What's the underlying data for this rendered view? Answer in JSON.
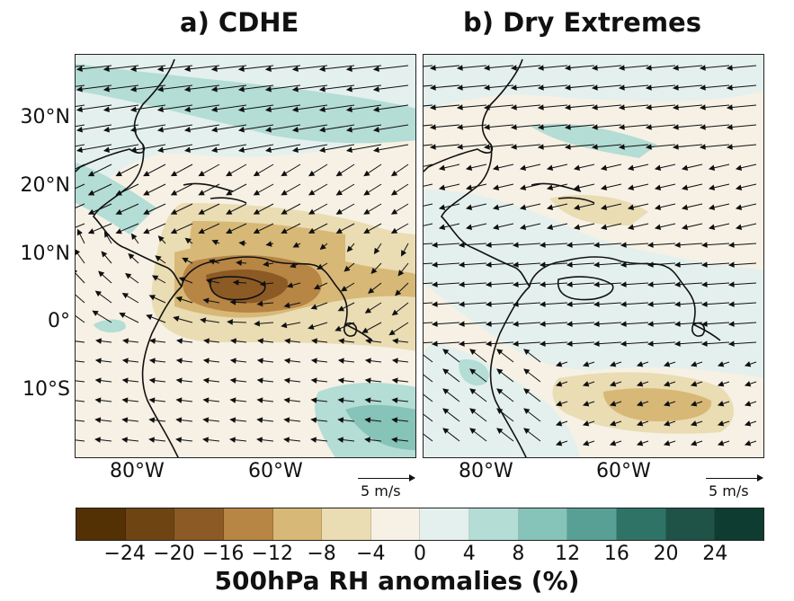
{
  "panels": [
    {
      "id": "a",
      "title": "a) CDHE",
      "scale_label": "5 m/s"
    },
    {
      "id": "b",
      "title": "b) Dry Extremes",
      "scale_label": "5 m/s"
    }
  ],
  "lat_labels": [
    "30°N",
    "20°N",
    "10°N",
    "0°",
    "10°S"
  ],
  "lon_labels": [
    "80°W",
    "60°W"
  ],
  "colorbar": {
    "label": "500hPa RH anomalies (%)",
    "ticks": [
      "−24",
      "−20",
      "−16",
      "−12",
      "−8",
      "−4",
      "0",
      "4",
      "8",
      "12",
      "16",
      "20",
      "24"
    ],
    "colors": [
      "#543005",
      "#6f4413",
      "#8c5a24",
      "#b78544",
      "#d7b877",
      "#eadcb3",
      "#f6f1e4",
      "#e4f0ee",
      "#b3ddd5",
      "#86c3b9",
      "#58a095",
      "#2f7367",
      "#1f5347",
      "#0f3c30"
    ]
  }
}
